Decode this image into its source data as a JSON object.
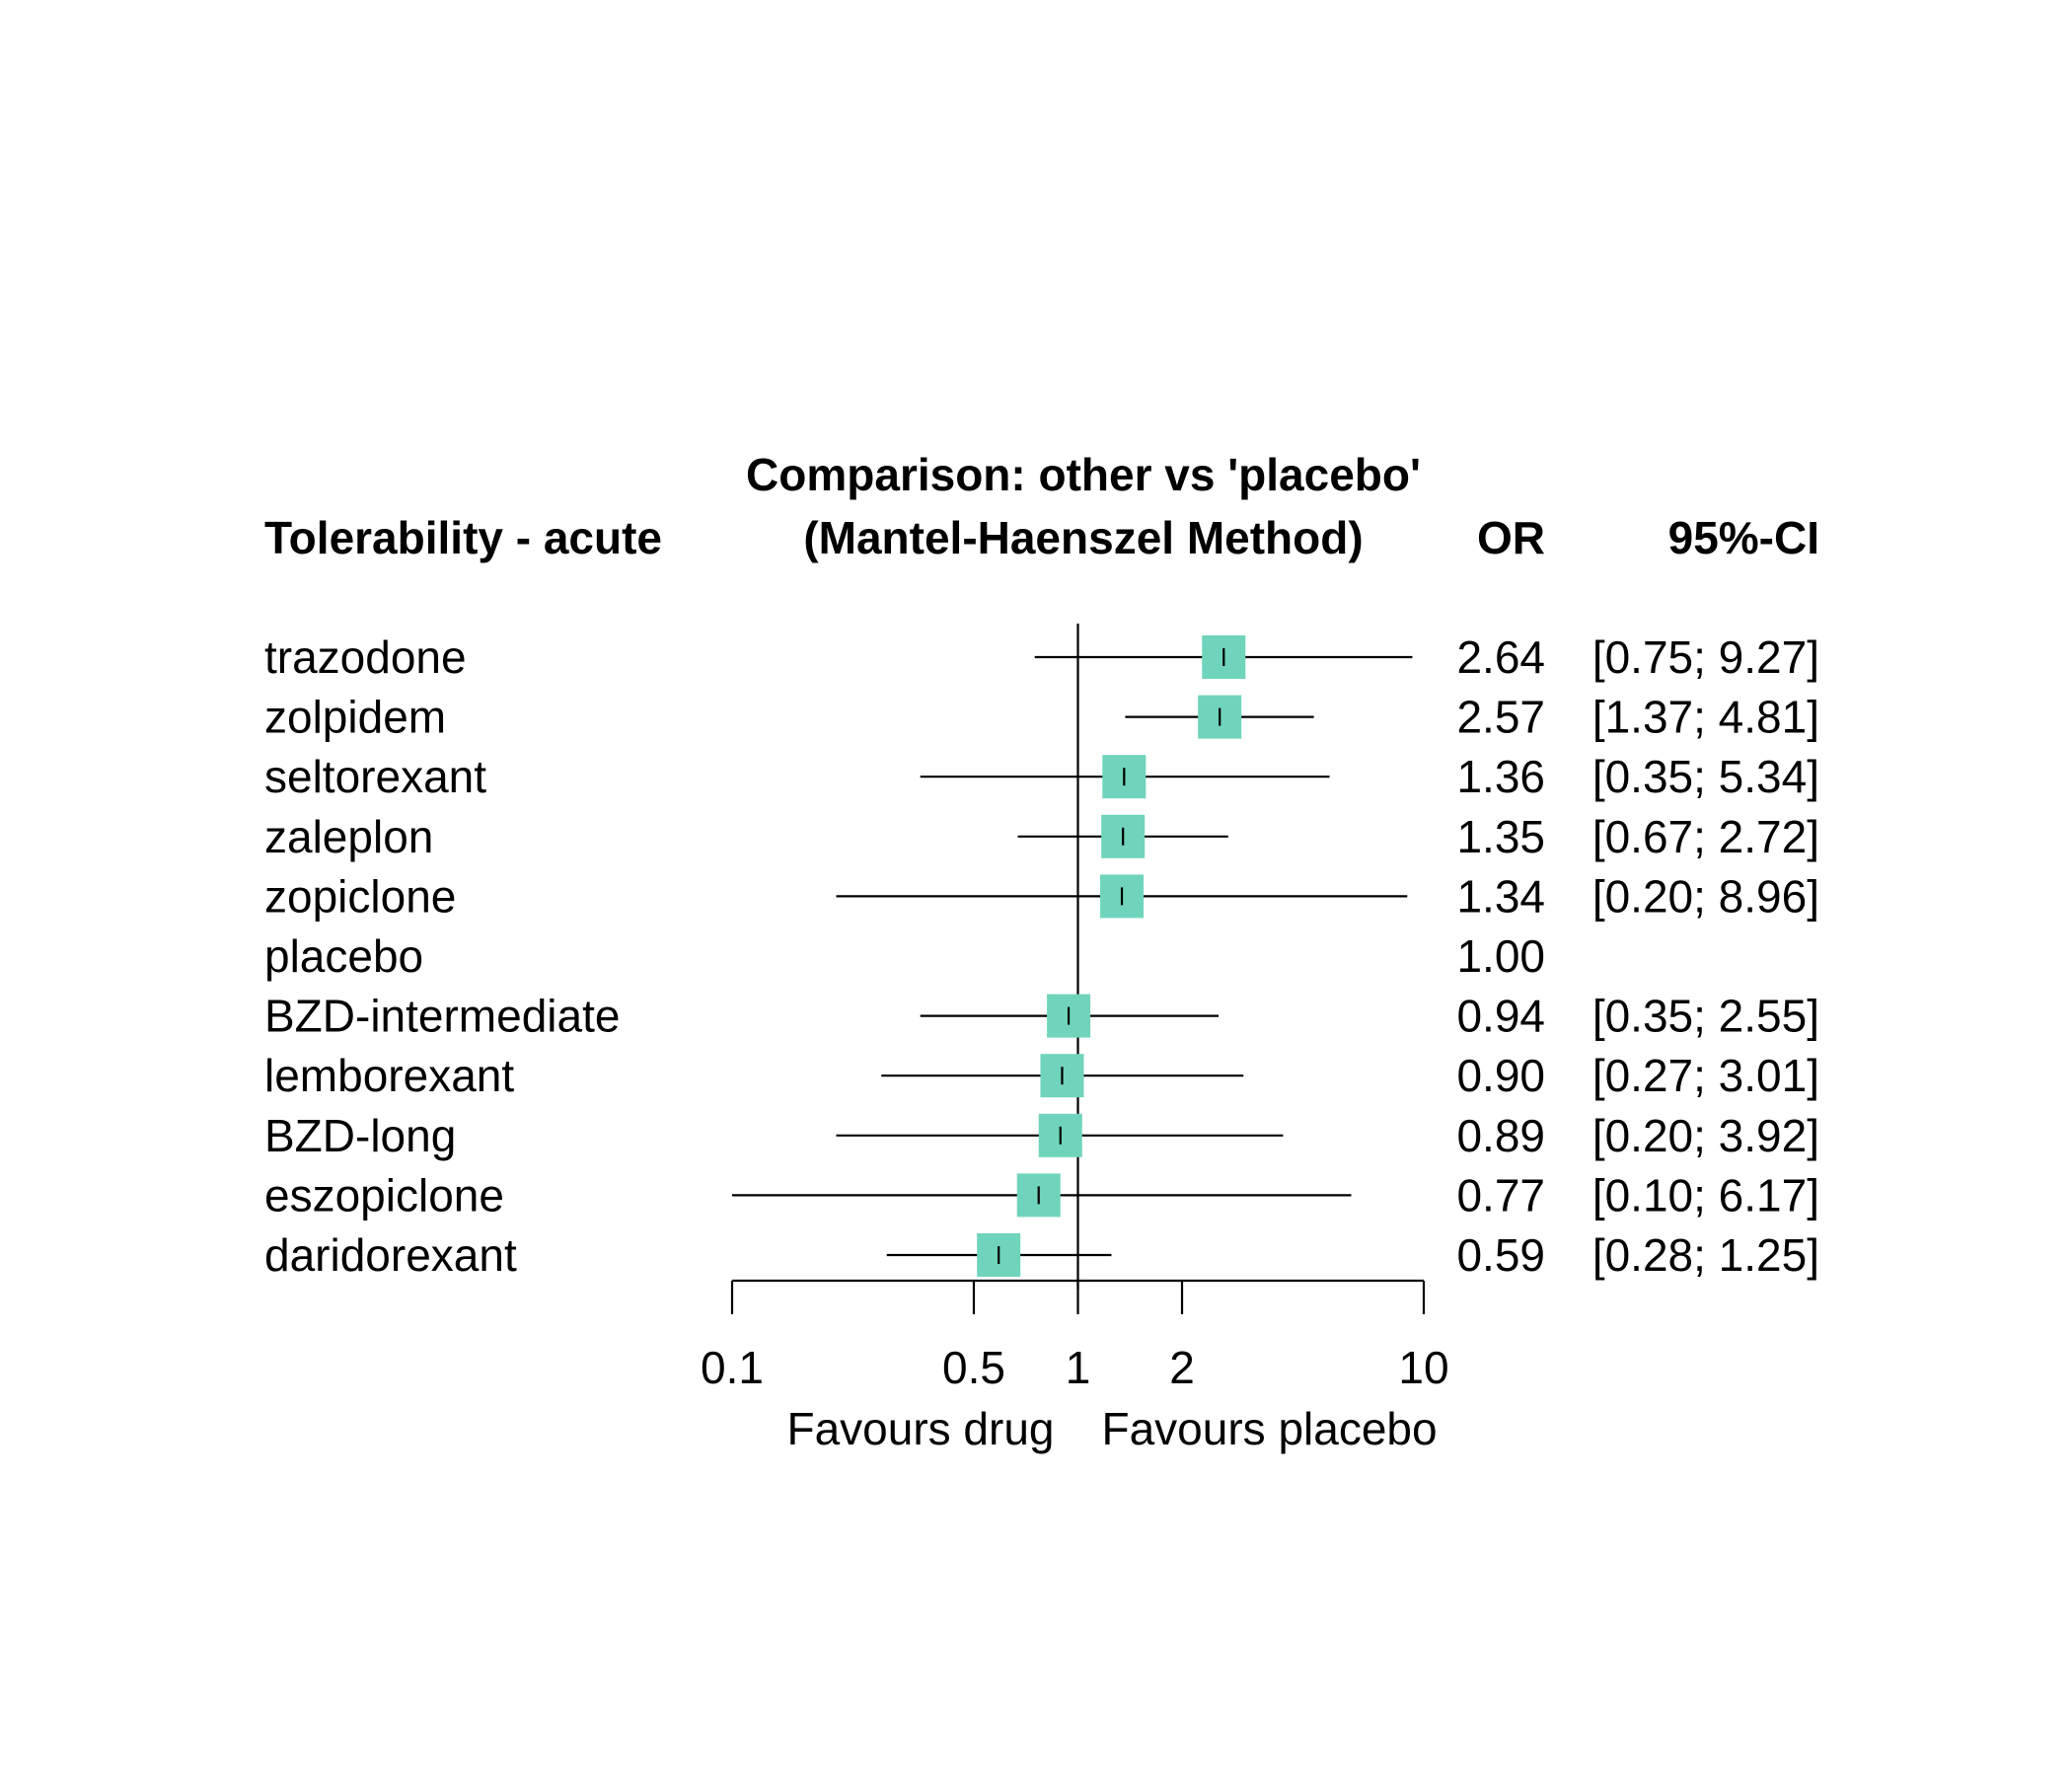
{
  "header": {
    "left": "Tolerability - acute",
    "title_line1": "Comparison: other vs 'placebo'",
    "title_line2": "(Mantel-Haenszel Method)",
    "col_or": "OR",
    "col_ci": "95%-CI"
  },
  "chart_data": {
    "type": "forest",
    "scale": "log",
    "xlim": [
      0.1,
      10
    ],
    "reference_line": 1,
    "ticks": [
      0.1,
      0.5,
      1,
      2,
      10
    ],
    "tick_labels": [
      "0.1",
      "0.5",
      "1",
      "2",
      "10"
    ],
    "xlabel_left": "Favours drug",
    "xlabel_right": "Favours placebo",
    "box_color": "#6fd4bb",
    "rows": [
      {
        "label": "trazodone",
        "or": 2.64,
        "lower": 0.75,
        "upper": 9.27,
        "or_text": "2.64",
        "ci_text": "[0.75; 9.27]"
      },
      {
        "label": "zolpidem",
        "or": 2.57,
        "lower": 1.37,
        "upper": 4.81,
        "or_text": "2.57",
        "ci_text": "[1.37; 4.81]"
      },
      {
        "label": "seltorexant",
        "or": 1.36,
        "lower": 0.35,
        "upper": 5.34,
        "or_text": "1.36",
        "ci_text": "[0.35; 5.34]"
      },
      {
        "label": "zaleplon",
        "or": 1.35,
        "lower": 0.67,
        "upper": 2.72,
        "or_text": "1.35",
        "ci_text": "[0.67; 2.72]"
      },
      {
        "label": "zopiclone",
        "or": 1.34,
        "lower": 0.2,
        "upper": 8.96,
        "or_text": "1.34",
        "ci_text": "[0.20; 8.96]"
      },
      {
        "label": "placebo",
        "or": 1.0,
        "lower": null,
        "upper": null,
        "or_text": "1.00",
        "ci_text": ""
      },
      {
        "label": "BZD-intermediate",
        "or": 0.94,
        "lower": 0.35,
        "upper": 2.55,
        "or_text": "0.94",
        "ci_text": "[0.35; 2.55]"
      },
      {
        "label": "lemborexant",
        "or": 0.9,
        "lower": 0.27,
        "upper": 3.01,
        "or_text": "0.90",
        "ci_text": "[0.27; 3.01]"
      },
      {
        "label": "BZD-long",
        "or": 0.89,
        "lower": 0.2,
        "upper": 3.92,
        "or_text": "0.89",
        "ci_text": "[0.20; 3.92]"
      },
      {
        "label": "eszopiclone",
        "or": 0.77,
        "lower": 0.1,
        "upper": 6.17,
        "or_text": "0.77",
        "ci_text": "[0.10; 6.17]"
      },
      {
        "label": "daridorexant",
        "or": 0.59,
        "lower": 0.28,
        "upper": 1.25,
        "or_text": "0.59",
        "ci_text": "[0.28; 1.25]"
      }
    ]
  }
}
